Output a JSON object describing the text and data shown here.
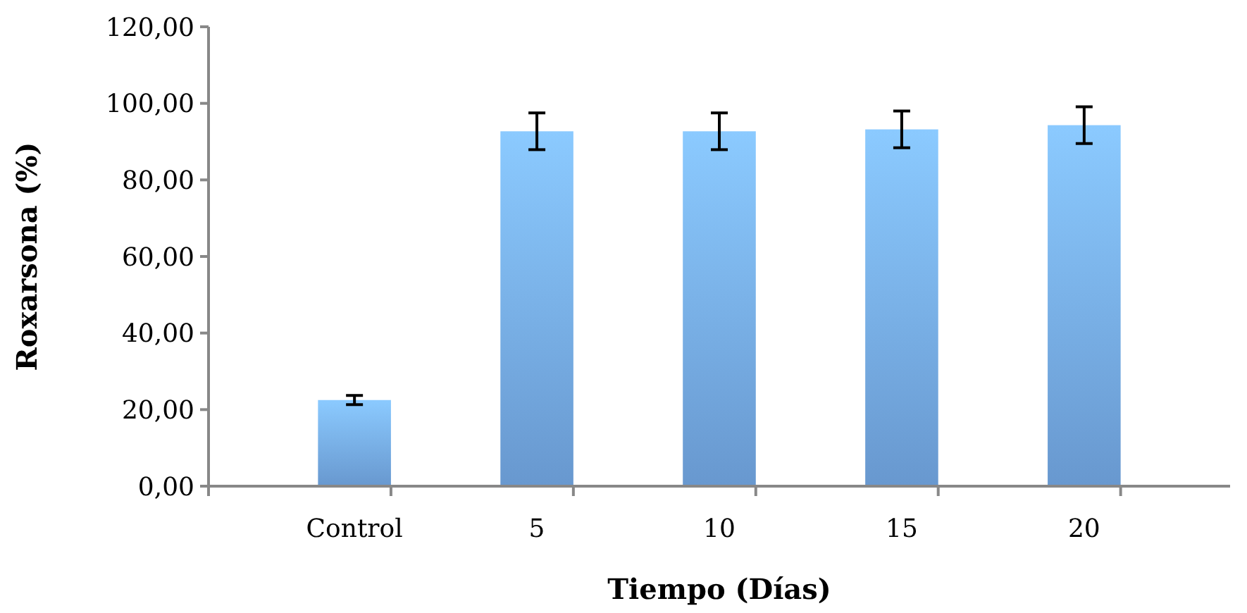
{
  "chart_data": {
    "type": "bar",
    "xlabel": "Tiempo (Días)",
    "ylabel": "Roxarsona (%)",
    "categories": [
      "Control",
      "5",
      "10",
      "15",
      "20"
    ],
    "values": [
      22.5,
      92.7,
      92.7,
      93.2,
      94.3
    ],
    "errors": [
      1.2,
      4.8,
      4.8,
      4.8,
      4.8
    ],
    "color": "#74a9e6",
    "ylim": [
      0,
      120
    ],
    "yticks": [
      {
        "value": 0,
        "label": "0,00"
      },
      {
        "value": 20,
        "label": "20,00"
      },
      {
        "value": 40,
        "label": "40,00"
      },
      {
        "value": 60,
        "label": "60,00"
      },
      {
        "value": 80,
        "label": "80,00"
      },
      {
        "value": 100,
        "label": "100,00"
      },
      {
        "value": 120,
        "label": "120,00"
      }
    ],
    "grid": false
  }
}
